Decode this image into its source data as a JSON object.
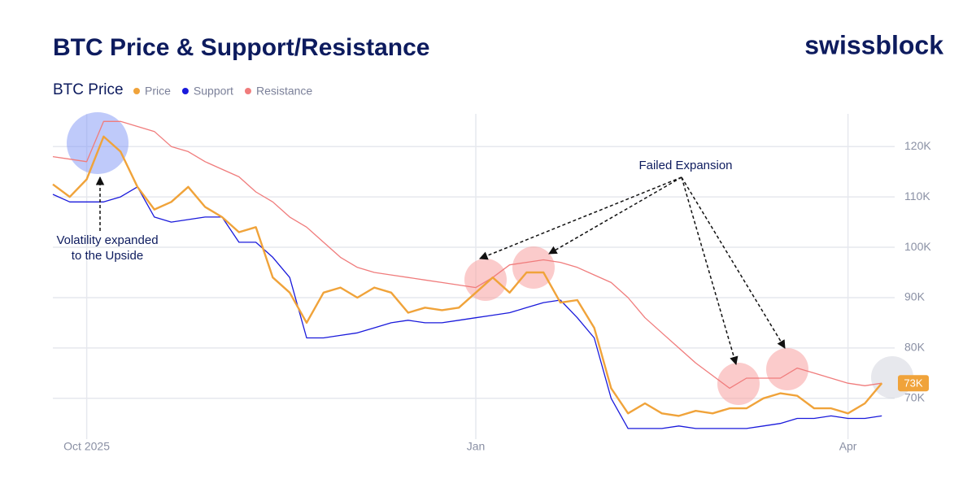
{
  "chart_data": {
    "type": "line",
    "title": "BTC Price & Support/Resistance",
    "brand": "swissblock",
    "legend_title": "BTC Price",
    "annotation_upside": [
      "Volatility expanded",
      "to the Upside"
    ],
    "annotation_failed": "Failed Expansion",
    "categories": [
      null,
      null,
      "Oct 2025",
      null,
      null,
      null,
      null,
      null,
      null,
      null,
      null,
      null,
      null,
      null,
      null,
      null,
      null,
      null,
      null,
      null,
      null,
      null,
      null,
      null,
      null,
      "Jan",
      null,
      null,
      null,
      null,
      null,
      null,
      null,
      null,
      null,
      null,
      null,
      null,
      null,
      null,
      null,
      null,
      null,
      null,
      null,
      null,
      null,
      "Apr",
      null,
      null
    ],
    "series": [
      {
        "name": "Price",
        "color": "#f0a33a",
        "values": [
          112.5,
          110,
          113.5,
          122,
          119,
          112,
          107.5,
          109,
          112,
          108,
          106,
          103,
          104,
          94,
          91,
          85,
          91,
          92,
          90,
          92,
          91,
          87,
          88,
          87.5,
          88,
          91,
          94,
          91,
          95,
          95,
          89,
          89.5,
          84,
          72,
          67,
          69,
          67,
          66.5,
          67.5,
          67,
          68,
          68,
          70,
          71,
          70.5,
          68,
          68,
          67,
          69,
          73
        ],
        "value_labels": [
          null,
          null,
          null,
          null,
          null,
          null,
          null,
          null,
          null,
          null,
          null,
          null,
          null,
          null,
          null,
          null,
          null,
          null,
          null,
          null,
          null,
          null,
          null,
          null,
          null,
          null,
          null,
          null,
          null,
          null,
          null,
          null,
          null,
          null,
          null,
          null,
          null,
          null,
          null,
          null,
          null,
          null,
          null,
          null,
          null,
          null,
          null,
          null,
          null,
          "73K"
        ]
      },
      {
        "name": "Support",
        "color": "#1a1adb",
        "values": [
          110.5,
          109,
          109,
          109,
          110,
          112,
          106,
          105,
          105.5,
          106,
          106,
          101,
          101,
          98,
          94,
          82,
          82,
          82.5,
          83,
          84,
          85,
          85.5,
          85,
          85,
          85.5,
          86,
          86.5,
          87,
          88,
          89,
          89.5,
          86,
          82,
          70,
          64,
          64,
          64,
          64.5,
          64,
          64,
          64,
          64,
          64.5,
          65,
          66,
          66,
          66.5,
          66,
          66,
          66.5
        ]
      },
      {
        "name": "Resistance",
        "color": "#f07c7c",
        "values": [
          118,
          117.5,
          117,
          125,
          125,
          124,
          123,
          120,
          119,
          117,
          115.5,
          114,
          111,
          109,
          106,
          104,
          101,
          98,
          96,
          95,
          94.5,
          94,
          93.5,
          93,
          92.5,
          92,
          94,
          96.5,
          97,
          97.5,
          97,
          96,
          94.5,
          93,
          90,
          86,
          83,
          80,
          77,
          74.5,
          72,
          74,
          74,
          74,
          76,
          75,
          74,
          73,
          72.5,
          73
        ]
      }
    ],
    "ylim": [
      63.5,
      126.5
    ],
    "yticks": [
      {
        "value": 70,
        "label": "70K"
      },
      {
        "value": 80,
        "label": "80K"
      },
      {
        "value": 90,
        "label": "90K"
      },
      {
        "value": 100,
        "label": "100K"
      },
      {
        "value": 110,
        "label": "110K"
      },
      {
        "value": 120,
        "label": "120K"
      }
    ],
    "grid": true
  }
}
